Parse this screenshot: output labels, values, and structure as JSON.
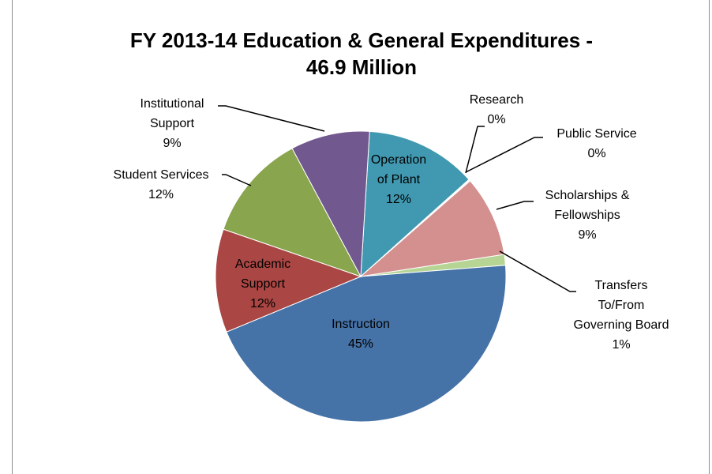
{
  "chart_data": {
    "type": "pie",
    "title_lines": [
      "FY 2013-14 Education & General Expenditures -",
      "46.9 Million"
    ],
    "slices": [
      {
        "name": "Operation of Plant",
        "label_lines": [
          "Operation",
          "of  Plant",
          "12%"
        ],
        "value": 12.4,
        "color": "#4199b1"
      },
      {
        "name": "Research",
        "label_lines": [
          "Research",
          "0%"
        ],
        "value": 0.1,
        "color": "#d8e2ef"
      },
      {
        "name": "Public Service",
        "label_lines": [
          "Public Service",
          "0%"
        ],
        "value": 0.1,
        "color": "#f0c4c4"
      },
      {
        "name": "Scholarships & Fellowships",
        "label_lines": [
          "Scholarships &",
          "Fellowships",
          "9%"
        ],
        "value": 9.0,
        "color": "#d4908f"
      },
      {
        "name": "Transfers To/From Governing Board",
        "label_lines": [
          "Transfers",
          "To/From",
          "Governing Board",
          "1%"
        ],
        "value": 1.2,
        "color": "#b6d595"
      },
      {
        "name": "Instruction",
        "label_lines": [
          "Instruction",
          "45%"
        ],
        "value": 45.0,
        "color": "#4572a7"
      },
      {
        "name": "Academic Support",
        "label_lines": [
          "Academic",
          "Support",
          "12%"
        ],
        "value": 11.5,
        "color": "#aa4643"
      },
      {
        "name": "Student Services",
        "label_lines": [
          "Student Services",
          "12%"
        ],
        "value": 11.9,
        "color": "#89a54e"
      },
      {
        "name": "Institutional Support",
        "label_lines": [
          "Institutional",
          "Support",
          "9%"
        ],
        "value": 8.8,
        "color": "#71588f"
      }
    ]
  }
}
